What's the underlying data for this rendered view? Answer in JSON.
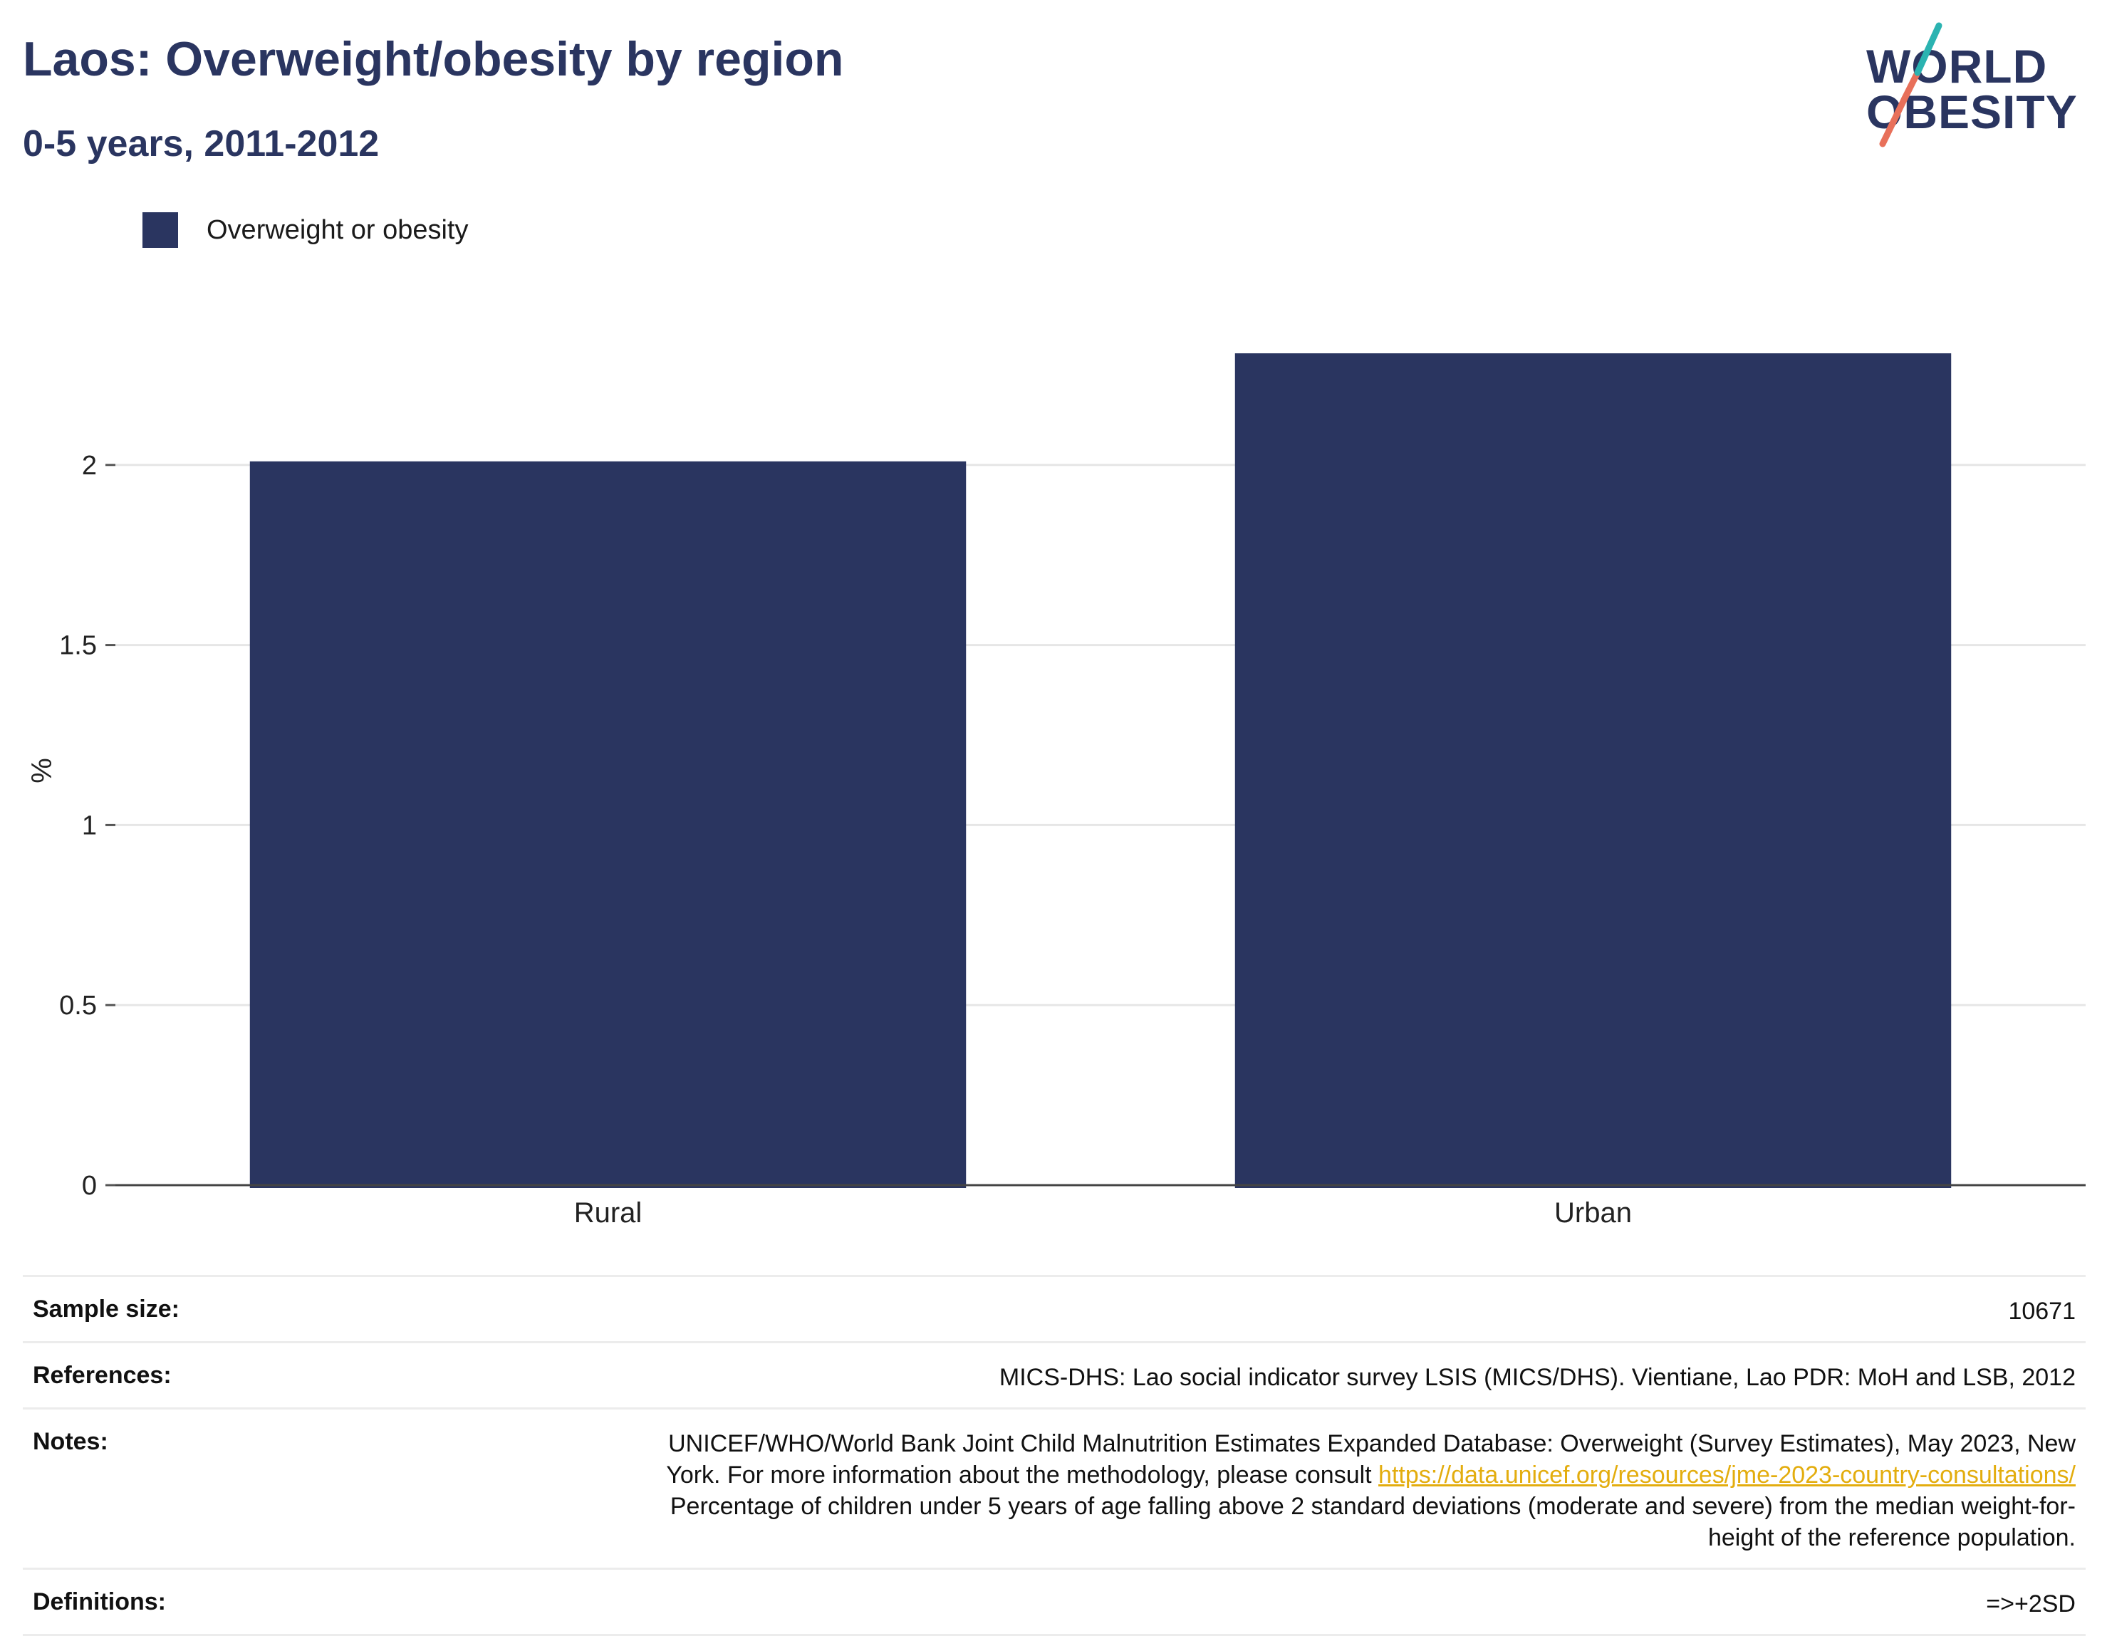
{
  "header": {
    "title": "Laos: Overweight/obesity by region",
    "subtitle": "0-5 years, 2011-2012"
  },
  "logo": {
    "line1": "WORLD",
    "line2": "OBESITY",
    "colors": {
      "text": "#2a3560",
      "slash_teal": "#2bb3b1",
      "slash_coral": "#e8705a"
    }
  },
  "legend": {
    "label": "Overweight or obesity",
    "color": "#2a3560"
  },
  "chart_data": {
    "type": "bar",
    "categories": [
      "Rural",
      "Urban"
    ],
    "series": [
      {
        "name": "Overweight or obesity",
        "values": [
          2.01,
          2.31
        ],
        "color": "#2a3560"
      }
    ],
    "title": "Laos: Overweight/obesity by region",
    "subtitle": "0-5 years, 2011-2012",
    "xlabel": "",
    "ylabel": "%",
    "ylim": [
      0,
      2.5
    ],
    "yticks": [
      0,
      0.5,
      1,
      1.5,
      2
    ],
    "ytick_labels": [
      "0",
      "0.5",
      "1",
      "1.5",
      "2"
    ],
    "grid": true,
    "legend_position": "top-left"
  },
  "info": {
    "sample_size": {
      "key": "Sample size:",
      "value": "10671"
    },
    "references": {
      "key": "References:",
      "value": "MICS-DHS: Lao social indicator survey LSIS (MICS/DHS). Vientiane, Lao PDR: MoH and LSB, 2012"
    },
    "notes": {
      "key": "Notes:",
      "text_before_link": "UNICEF/WHO/World Bank Joint Child Malnutrition Estimates Expanded Database: Overweight (Survey Estimates), May 2023, New York. For more information about the methodology, please consult ",
      "link": "https://data.unicef.org/resources/jme-2023-country-consultations/",
      "text_after_link": " Percentage of children under 5 years of age falling above 2 standard deviations (moderate and severe) from the median weight-for-height of the reference population."
    },
    "definitions": {
      "key": "Definitions:",
      "value": "=>+2SD"
    }
  }
}
